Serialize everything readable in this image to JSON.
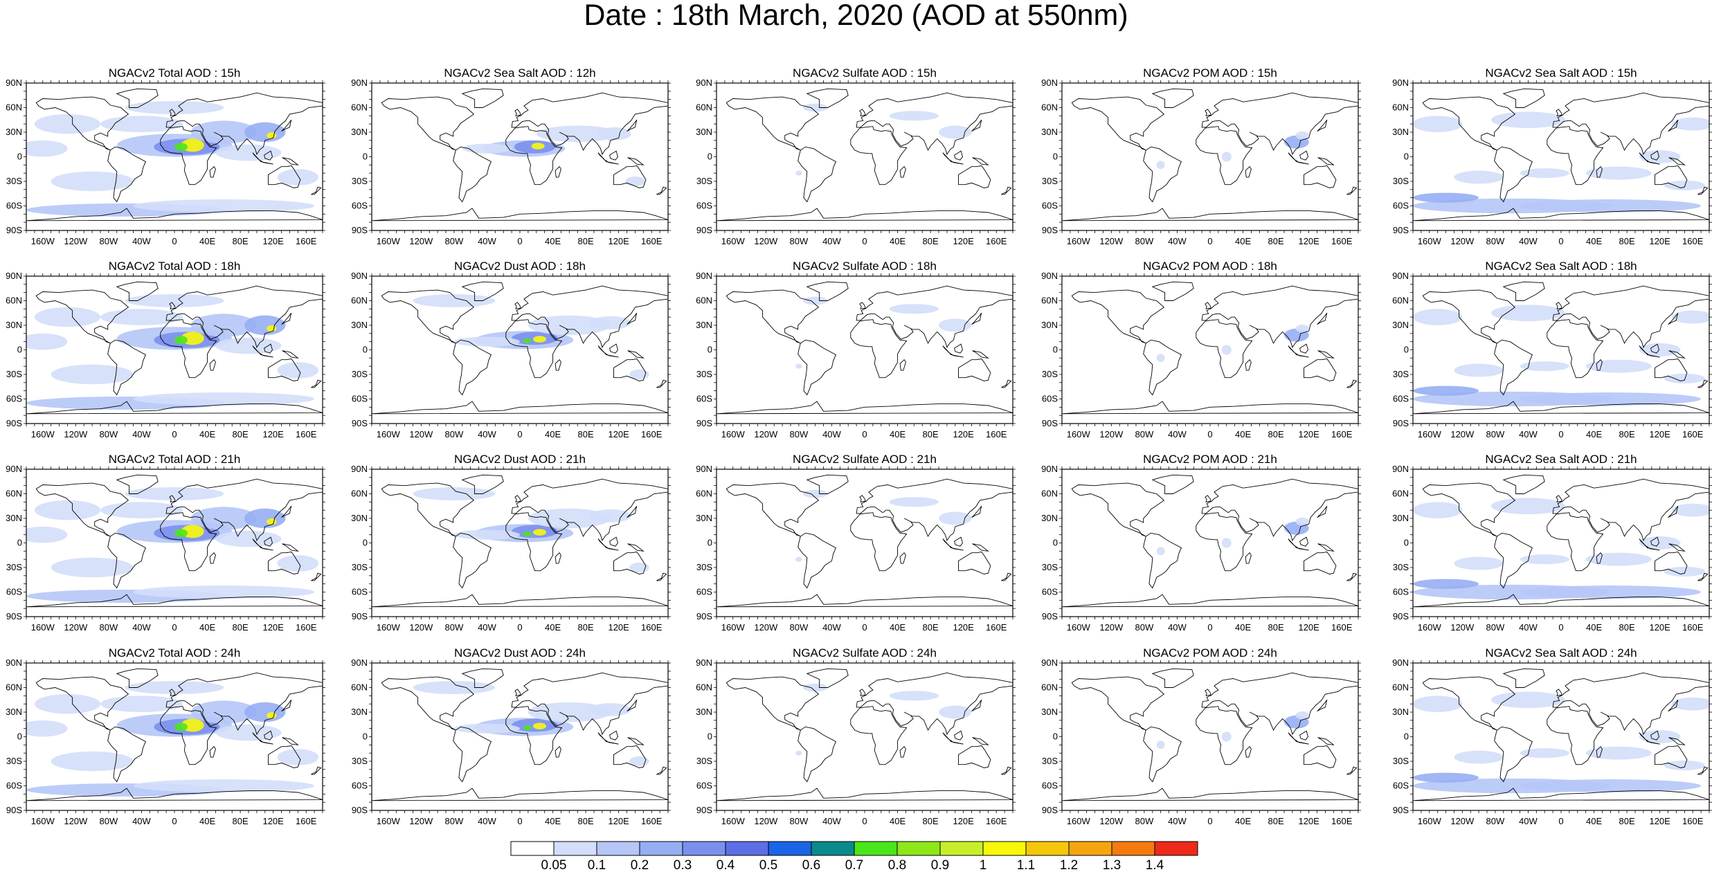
{
  "title": "Date : 18th March, 2020 (AOD at 550nm)",
  "lat_ticks": [
    "90N",
    "60N",
    "30N",
    "0",
    "30S",
    "60S",
    "90S"
  ],
  "lon_ticks": [
    "160W",
    "120W",
    "80W",
    "40W",
    "0",
    "40E",
    "80E",
    "120E",
    "160E"
  ],
  "rows": [
    [
      "NGACv2 Total AOD : 15h",
      "NGACv2 Sea Salt  AOD : 12h",
      "NGACv2 Sulfate AOD : 15h",
      "NGACv2 POM AOD : 15h",
      "NGACv2 Sea Salt AOD : 15h"
    ],
    [
      "NGACv2 Total AOD : 18h",
      "NGACv2 Dust AOD : 18h",
      "NGACv2 Sulfate AOD : 18h",
      "NGACv2 POM AOD : 18h",
      "NGACv2 Sea Salt AOD : 18h"
    ],
    [
      "NGACv2 Total AOD : 21h",
      "NGACv2 Dust AOD : 21h",
      "NGACv2 Sulfate AOD : 21h",
      "NGACv2 POM AOD : 21h",
      "NGACv2 Sea Salt AOD : 21h"
    ],
    [
      "NGACv2 Total AOD : 24h",
      "NGACv2 Dust AOD : 24h",
      "NGACv2 Sulfate AOD : 24h",
      "NGACv2 POM AOD : 24h",
      "NGACv2 Sea Salt  AOD : 24h"
    ]
  ],
  "colorbar": {
    "labels": [
      "0.05",
      "0.1",
      "0.2",
      "0.3",
      "0.4",
      "0.5",
      "0.6",
      "0.7",
      "0.8",
      "0.9",
      "1",
      "1.1",
      "1.2",
      "1.3",
      "1.4"
    ],
    "colors": [
      "#ffffff",
      "#d3defa",
      "#b5c6f7",
      "#96aef4",
      "#7b90ee",
      "#5c6fe6",
      "#1a64e6",
      "#0a8a8c",
      "#4be619",
      "#8fe619",
      "#c6ef2a",
      "#f8f80a",
      "#f5c70a",
      "#f5a50f",
      "#f57a0f",
      "#ee2a1a"
    ]
  },
  "field_colors": {
    "light": "#d3defa",
    "mid": "#b5c6f7",
    "strong": "#96aef4",
    "deep": "#7b90ee",
    "hot": "#f8f80a",
    "green": "#4be619",
    "teal": "#0a8a8c"
  }
}
